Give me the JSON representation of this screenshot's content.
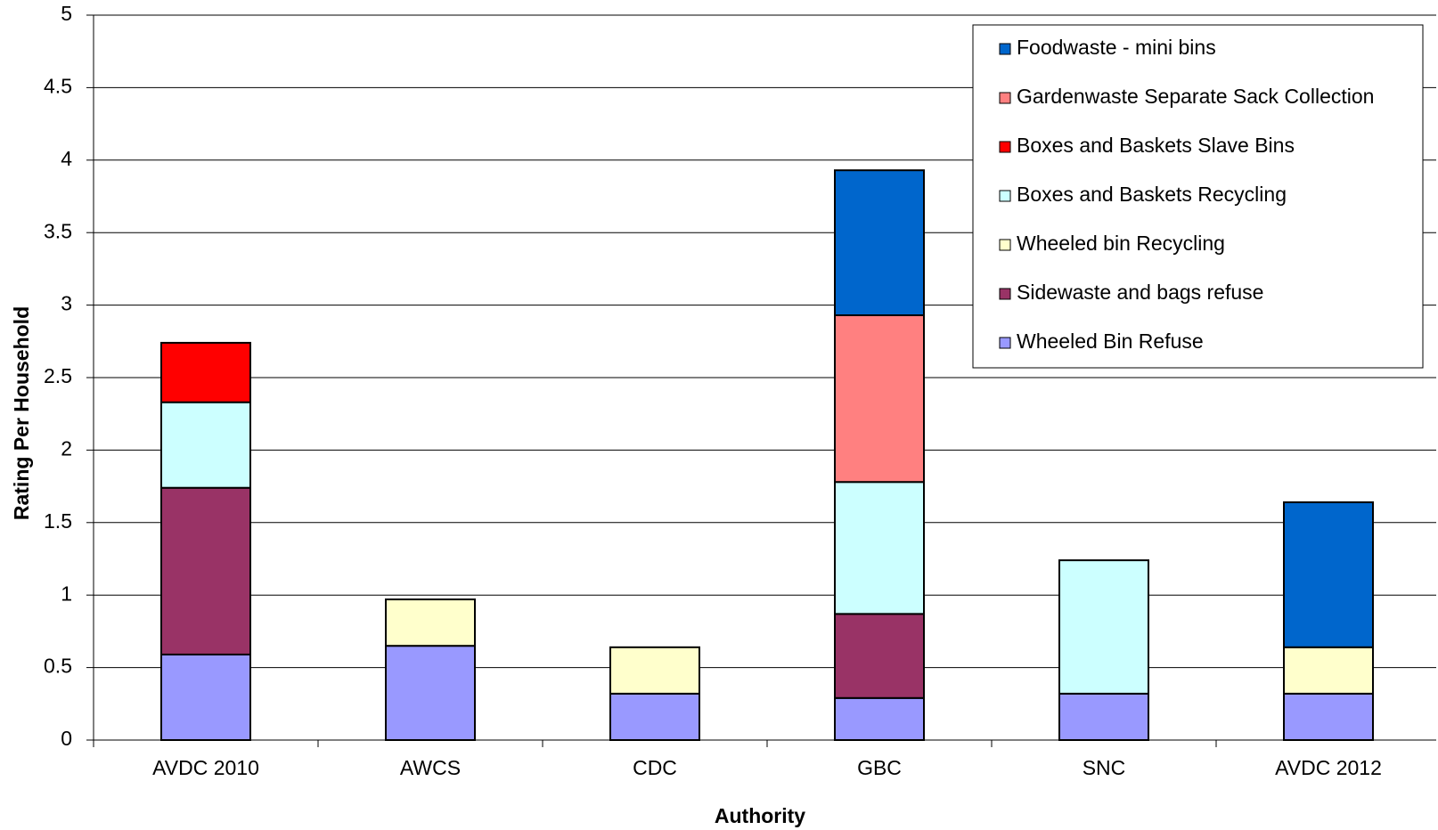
{
  "chart_data": {
    "type": "stacked-bar",
    "x_label": "Authority",
    "y_label": "Rating Per Household",
    "categories": [
      "AVDC 2010",
      "AWCS",
      "CDC",
      "GBC",
      "SNC",
      "AVDC 2012"
    ],
    "series": [
      {
        "name": "Wheeled Bin Refuse",
        "color": "#9999ff",
        "values": [
          0.59,
          0.65,
          0.32,
          0.29,
          0.32,
          0.32
        ]
      },
      {
        "name": "Sidewaste and bags refuse",
        "color": "#993366",
        "values": [
          1.15,
          null,
          null,
          0.58,
          null,
          null
        ]
      },
      {
        "name": "Wheeled bin Recycling",
        "color": "#ffffcc",
        "values": [
          null,
          0.32,
          0.32,
          null,
          null,
          0.32
        ]
      },
      {
        "name": "Boxes and Baskets Recycling",
        "color": "#ccffff",
        "values": [
          0.59,
          null,
          null,
          0.91,
          0.92,
          null
        ]
      },
      {
        "name": "Boxes and Baskets Slave Bins",
        "color": "#ff0000",
        "values": [
          0.41,
          null,
          null,
          null,
          null,
          null
        ]
      },
      {
        "name": "Gardenwaste Separate Sack Collection",
        "color": "#ff8080",
        "values": [
          null,
          null,
          null,
          1.15,
          null,
          null
        ]
      },
      {
        "name": "Foodwaste - mini bins",
        "color": "#0066cc",
        "values": [
          null,
          null,
          null,
          1.0,
          null,
          1.0
        ]
      }
    ],
    "ylim": [
      0,
      5
    ],
    "yticks": [
      0,
      0.5,
      1,
      1.5,
      2,
      2.5,
      3,
      3.5,
      4,
      4.5,
      5
    ],
    "grid": true,
    "legend": "top-right"
  }
}
